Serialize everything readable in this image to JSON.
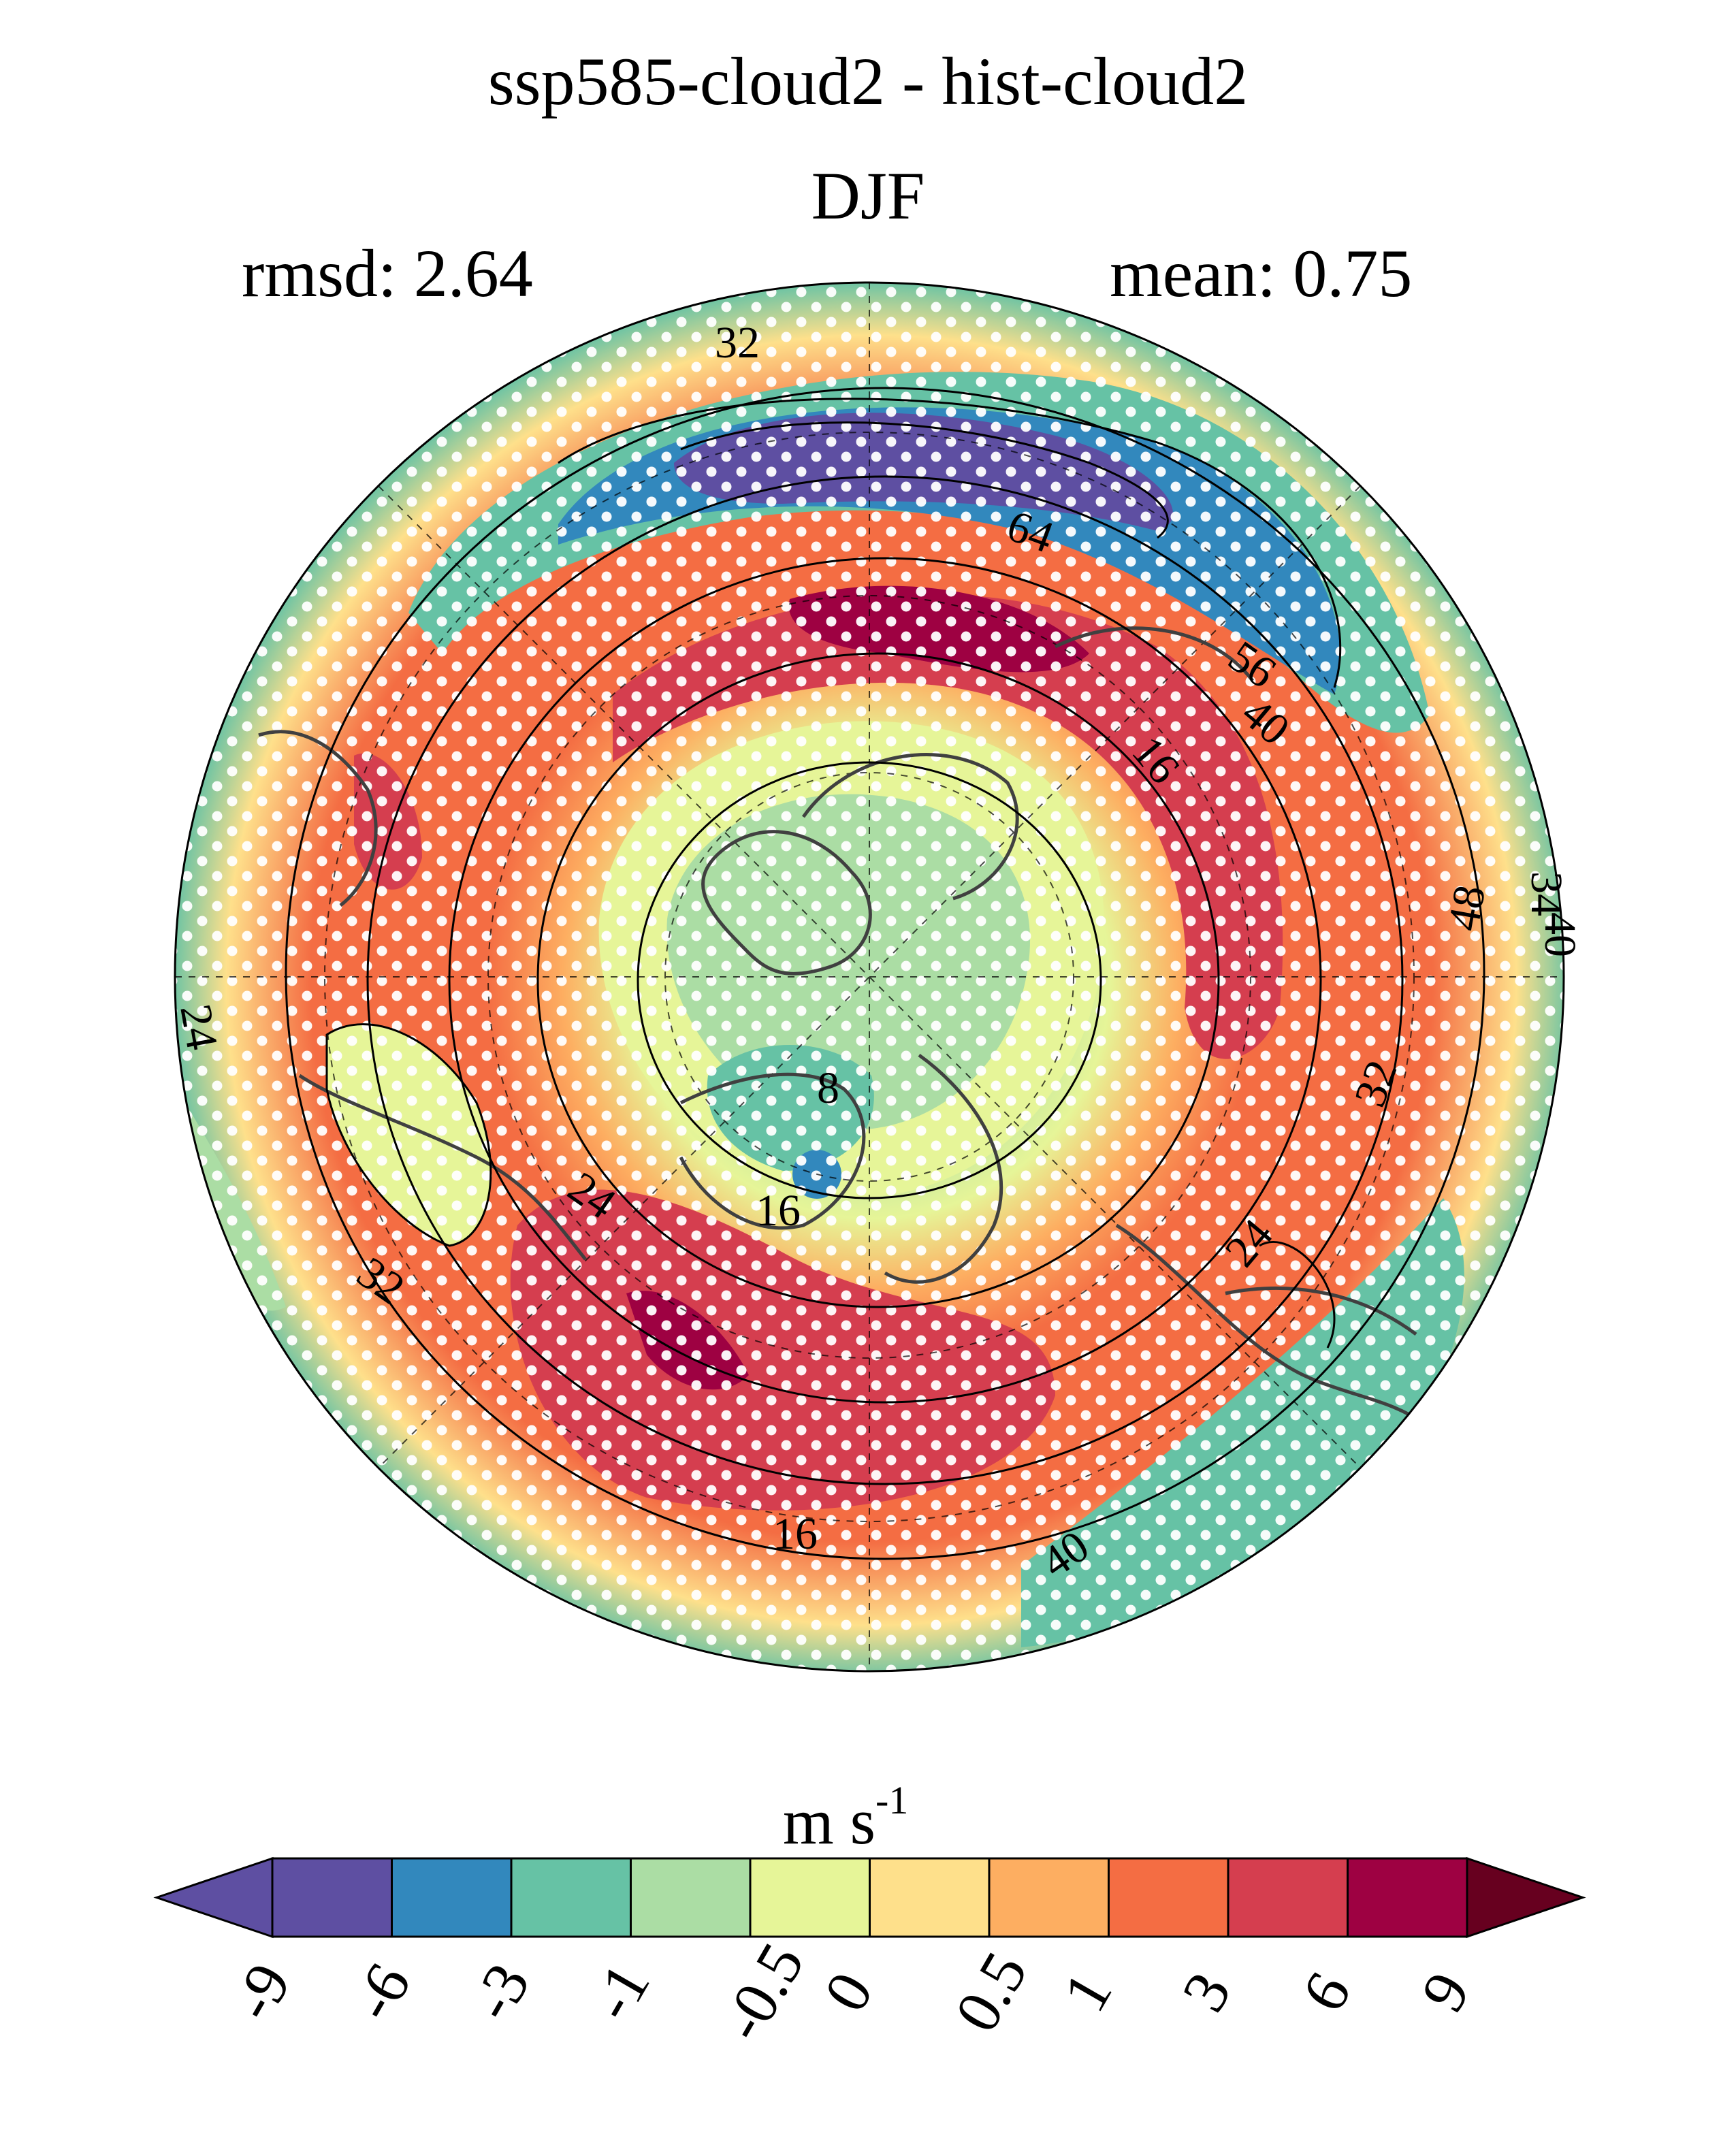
{
  "figure": {
    "title": "ssp585-cloud2 - hist-cloud2",
    "season": "DJF",
    "rmsd_label": "rmsd: 2.64",
    "mean_label": "mean: 0.75",
    "projection": "north polar stereographic",
    "stippling": "white dots",
    "contour_color": "#000000",
    "coastline_color": "#404040"
  },
  "contour_labels": [
    "32",
    "64",
    "56",
    "40",
    "16",
    "34",
    "48",
    "40",
    "32",
    "24",
    "8",
    "16",
    "24",
    "24",
    "32",
    "16",
    "40"
  ],
  "colorbar": {
    "units_main": "m s",
    "units_sup": "-1",
    "ticks": [
      "-9",
      "-6",
      "-3",
      "-1",
      "-0.5",
      "0",
      "0.5",
      "1",
      "3",
      "6",
      "9"
    ],
    "colors": [
      "#5e4fa2",
      "#5e4fa2",
      "#3288bd",
      "#66c2a5",
      "#abdda4",
      "#e6f598",
      "#fee08b",
      "#fdae61",
      "#f46d43",
      "#d53e4f",
      "#9e0142",
      "#67001f"
    ]
  }
}
